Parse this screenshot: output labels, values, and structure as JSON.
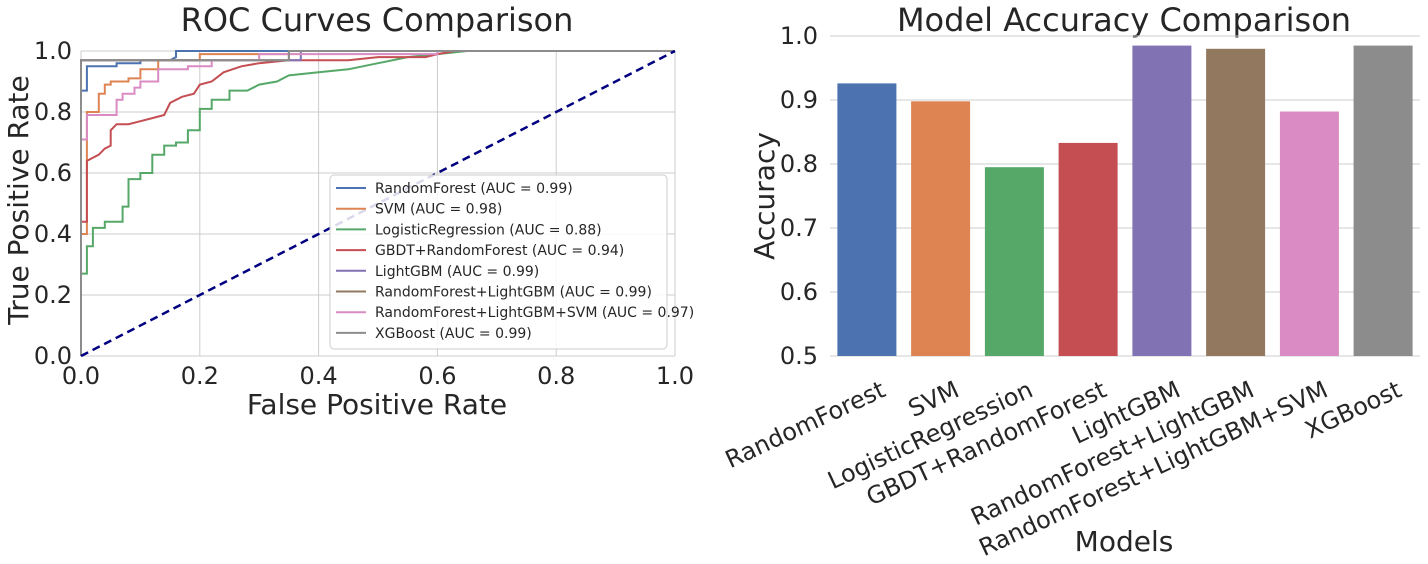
{
  "chart_data": [
    {
      "type": "line",
      "title": "ROC Curves Comparison",
      "xlabel": "False Positive Rate",
      "ylabel": "True Positive Rate",
      "xlim": [
        0.0,
        1.0
      ],
      "ylim": [
        0.0,
        1.0
      ],
      "xticks": [
        "0.0",
        "0.2",
        "0.4",
        "0.6",
        "0.8",
        "1.0"
      ],
      "yticks": [
        "0.0",
        "0.2",
        "0.4",
        "0.6",
        "0.8",
        "1.0"
      ],
      "grid": true,
      "legend_position": "lower-right",
      "series": [
        {
          "name": "RandomForest (AUC = 0.99)",
          "color": "#4c72b0",
          "points": [
            [
              0,
              0
            ],
            [
              0,
              0.87
            ],
            [
              0.01,
              0.87
            ],
            [
              0.01,
              0.95
            ],
            [
              0.06,
              0.95
            ],
            [
              0.06,
              0.96
            ],
            [
              0.1,
              0.96
            ],
            [
              0.1,
              0.97
            ],
            [
              0.15,
              0.97
            ],
            [
              0.16,
              0.98
            ],
            [
              0.16,
              1.0
            ],
            [
              1,
              1
            ]
          ]
        },
        {
          "name": "SVM (AUC = 0.98)",
          "color": "#dd8452",
          "points": [
            [
              0,
              0
            ],
            [
              0,
              0.4
            ],
            [
              0.01,
              0.4
            ],
            [
              0.01,
              0.8
            ],
            [
              0.03,
              0.8
            ],
            [
              0.03,
              0.86
            ],
            [
              0.04,
              0.86
            ],
            [
              0.04,
              0.89
            ],
            [
              0.05,
              0.89
            ],
            [
              0.05,
              0.9
            ],
            [
              0.08,
              0.9
            ],
            [
              0.08,
              0.91
            ],
            [
              0.1,
              0.91
            ],
            [
              0.1,
              0.94
            ],
            [
              0.13,
              0.94
            ],
            [
              0.13,
              0.97
            ],
            [
              0.2,
              0.97
            ],
            [
              0.2,
              0.99
            ],
            [
              0.35,
              0.99
            ],
            [
              0.35,
              1.0
            ],
            [
              1,
              1
            ]
          ]
        },
        {
          "name": "LogisticRegression (AUC = 0.88)",
          "color": "#55a868",
          "points": [
            [
              0,
              0
            ],
            [
              0,
              0.27
            ],
            [
              0.01,
              0.27
            ],
            [
              0.01,
              0.36
            ],
            [
              0.02,
              0.36
            ],
            [
              0.02,
              0.42
            ],
            [
              0.04,
              0.42
            ],
            [
              0.04,
              0.44
            ],
            [
              0.07,
              0.44
            ],
            [
              0.07,
              0.49
            ],
            [
              0.08,
              0.49
            ],
            [
              0.08,
              0.58
            ],
            [
              0.1,
              0.58
            ],
            [
              0.1,
              0.6
            ],
            [
              0.12,
              0.6
            ],
            [
              0.12,
              0.66
            ],
            [
              0.14,
              0.66
            ],
            [
              0.14,
              0.69
            ],
            [
              0.16,
              0.69
            ],
            [
              0.16,
              0.7
            ],
            [
              0.18,
              0.7
            ],
            [
              0.18,
              0.74
            ],
            [
              0.2,
              0.74
            ],
            [
              0.2,
              0.81
            ],
            [
              0.22,
              0.81
            ],
            [
              0.22,
              0.84
            ],
            [
              0.25,
              0.84
            ],
            [
              0.25,
              0.87
            ],
            [
              0.28,
              0.87
            ],
            [
              0.3,
              0.89
            ],
            [
              0.33,
              0.9
            ],
            [
              0.35,
              0.92
            ],
            [
              0.4,
              0.93
            ],
            [
              0.45,
              0.94
            ],
            [
              0.5,
              0.96
            ],
            [
              0.55,
              0.98
            ],
            [
              0.6,
              0.99
            ],
            [
              0.65,
              1.0
            ],
            [
              1,
              1
            ]
          ]
        },
        {
          "name": "GBDT+RandomForest (AUC = 0.94)",
          "color": "#c44e52",
          "points": [
            [
              0,
              0
            ],
            [
              0,
              0.44
            ],
            [
              0.01,
              0.44
            ],
            [
              0.01,
              0.64
            ],
            [
              0.03,
              0.66
            ],
            [
              0.04,
              0.68
            ],
            [
              0.05,
              0.69
            ],
            [
              0.05,
              0.74
            ],
            [
              0.06,
              0.76
            ],
            [
              0.08,
              0.76
            ],
            [
              0.1,
              0.77
            ],
            [
              0.12,
              0.78
            ],
            [
              0.14,
              0.79
            ],
            [
              0.15,
              0.83
            ],
            [
              0.17,
              0.85
            ],
            [
              0.19,
              0.86
            ],
            [
              0.2,
              0.89
            ],
            [
              0.22,
              0.9
            ],
            [
              0.24,
              0.93
            ],
            [
              0.27,
              0.95
            ],
            [
              0.3,
              0.96
            ],
            [
              0.35,
              0.97
            ],
            [
              0.45,
              0.97
            ],
            [
              0.5,
              0.98
            ],
            [
              0.58,
              0.98
            ],
            [
              0.6,
              0.99
            ],
            [
              0.63,
              1.0
            ],
            [
              1,
              1
            ]
          ]
        },
        {
          "name": "LightGBM (AUC = 0.99)",
          "color": "#8172b3",
          "points": [
            [
              0,
              0
            ],
            [
              0,
              0.97
            ],
            [
              0.37,
              0.97
            ],
            [
              0.37,
              1.0
            ],
            [
              1,
              1
            ]
          ]
        },
        {
          "name": "RandomForest+LightGBM (AUC = 0.99)",
          "color": "#937860",
          "points": [
            [
              0,
              0
            ],
            [
              0,
              0.97
            ],
            [
              0.35,
              0.97
            ],
            [
              0.35,
              1.0
            ],
            [
              1,
              1
            ]
          ]
        },
        {
          "name": "RandomForest+LightGBM+SVM (AUC = 0.97)",
          "color": "#da8bc3",
          "points": [
            [
              0,
              0
            ],
            [
              0,
              0.71
            ],
            [
              0.01,
              0.71
            ],
            [
              0.01,
              0.79
            ],
            [
              0.06,
              0.79
            ],
            [
              0.06,
              0.84
            ],
            [
              0.07,
              0.84
            ],
            [
              0.07,
              0.86
            ],
            [
              0.09,
              0.86
            ],
            [
              0.09,
              0.88
            ],
            [
              0.1,
              0.88
            ],
            [
              0.1,
              0.9
            ],
            [
              0.13,
              0.9
            ],
            [
              0.13,
              0.94
            ],
            [
              0.18,
              0.94
            ],
            [
              0.18,
              0.95
            ],
            [
              0.2,
              0.95
            ],
            [
              0.22,
              0.95
            ],
            [
              0.22,
              0.97
            ],
            [
              0.3,
              0.97
            ],
            [
              0.3,
              0.99
            ],
            [
              0.6,
              0.99
            ],
            [
              0.6,
              1.0
            ],
            [
              1,
              1
            ]
          ]
        },
        {
          "name": "XGBoost (AUC = 0.99)",
          "color": "#8c8c8c",
          "points": [
            [
              0,
              0
            ],
            [
              0,
              0.97
            ],
            [
              0.35,
              0.97
            ],
            [
              0.35,
              1.0
            ],
            [
              1,
              1
            ]
          ]
        }
      ],
      "diagonal": {
        "color": "#000080",
        "points": [
          [
            0,
            0
          ],
          [
            1,
            1
          ]
        ]
      }
    },
    {
      "type": "bar",
      "title": "Model Accuracy Comparison",
      "xlabel": "Models",
      "ylabel": "Accuracy",
      "ylim": [
        0.5,
        1.0
      ],
      "yticks": [
        "0.5",
        "0.6",
        "0.7",
        "0.8",
        "0.9",
        "1.0"
      ],
      "grid": true,
      "categories": [
        "RandomForest",
        "SVM",
        "LogisticRegression",
        "GBDT+RandomForest",
        "LightGBM",
        "RandomForest+LightGBM",
        "RandomForest+LightGBM+SVM",
        "XGBoost"
      ],
      "values": [
        0.926,
        0.898,
        0.795,
        0.833,
        0.985,
        0.98,
        0.882,
        0.985
      ],
      "colors": [
        "#4c72b0",
        "#dd8452",
        "#55a868",
        "#c44e52",
        "#8172b3",
        "#937860",
        "#da8bc3",
        "#8c8c8c"
      ]
    }
  ]
}
